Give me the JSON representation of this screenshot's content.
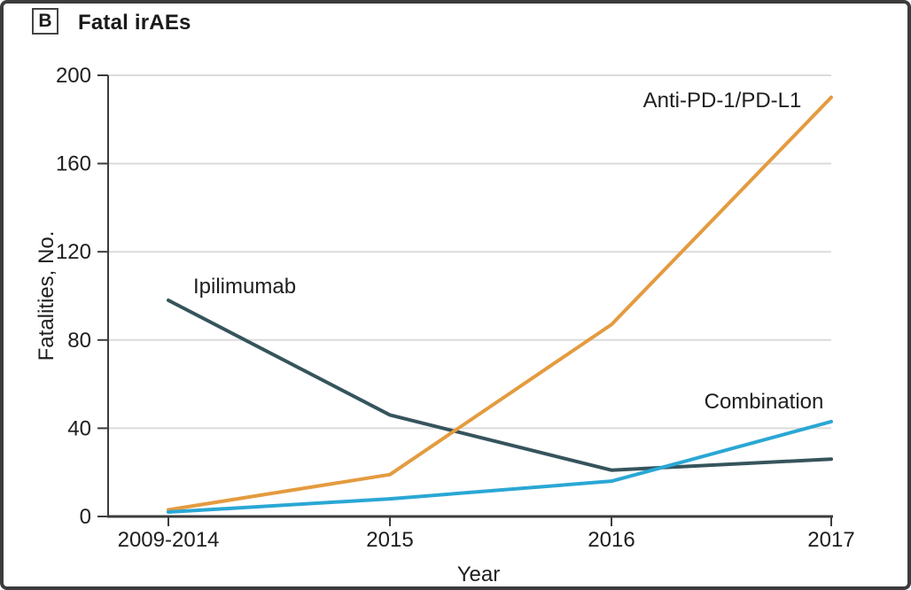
{
  "header": {
    "panel_letter": "B",
    "title": "Fatal irAEs"
  },
  "chart_data": {
    "type": "line",
    "title": "Fatal irAEs",
    "panel_letter": "B",
    "categories": [
      "2009-2014",
      "2015",
      "2016",
      "2017"
    ],
    "series": [
      {
        "name": "Ipilimumab",
        "color": "#36545C",
        "values": [
          98,
          46,
          21,
          26
        ]
      },
      {
        "name": "Anti-PD-1/PD-L1",
        "color": "#E49B3F",
        "values": [
          3,
          19,
          87,
          190
        ]
      },
      {
        "name": "Combination",
        "color": "#2AA7D4",
        "values": [
          2,
          8,
          16,
          43
        ]
      }
    ],
    "xlabel": "Year",
    "ylabel": "Fatalities, No.",
    "ylim": [
      0,
      200
    ],
    "yticks": [
      0,
      40,
      80,
      120,
      160,
      200
    ],
    "grid": "horizontal",
    "legend_position": "inline-labels-next-to-lines",
    "colors": {
      "grid": "#DBDBDB",
      "axis": "#3C3C3C",
      "text": "#1E1E1E",
      "frame_border": "#3C3C3C",
      "background": "#FFFFFF"
    }
  }
}
